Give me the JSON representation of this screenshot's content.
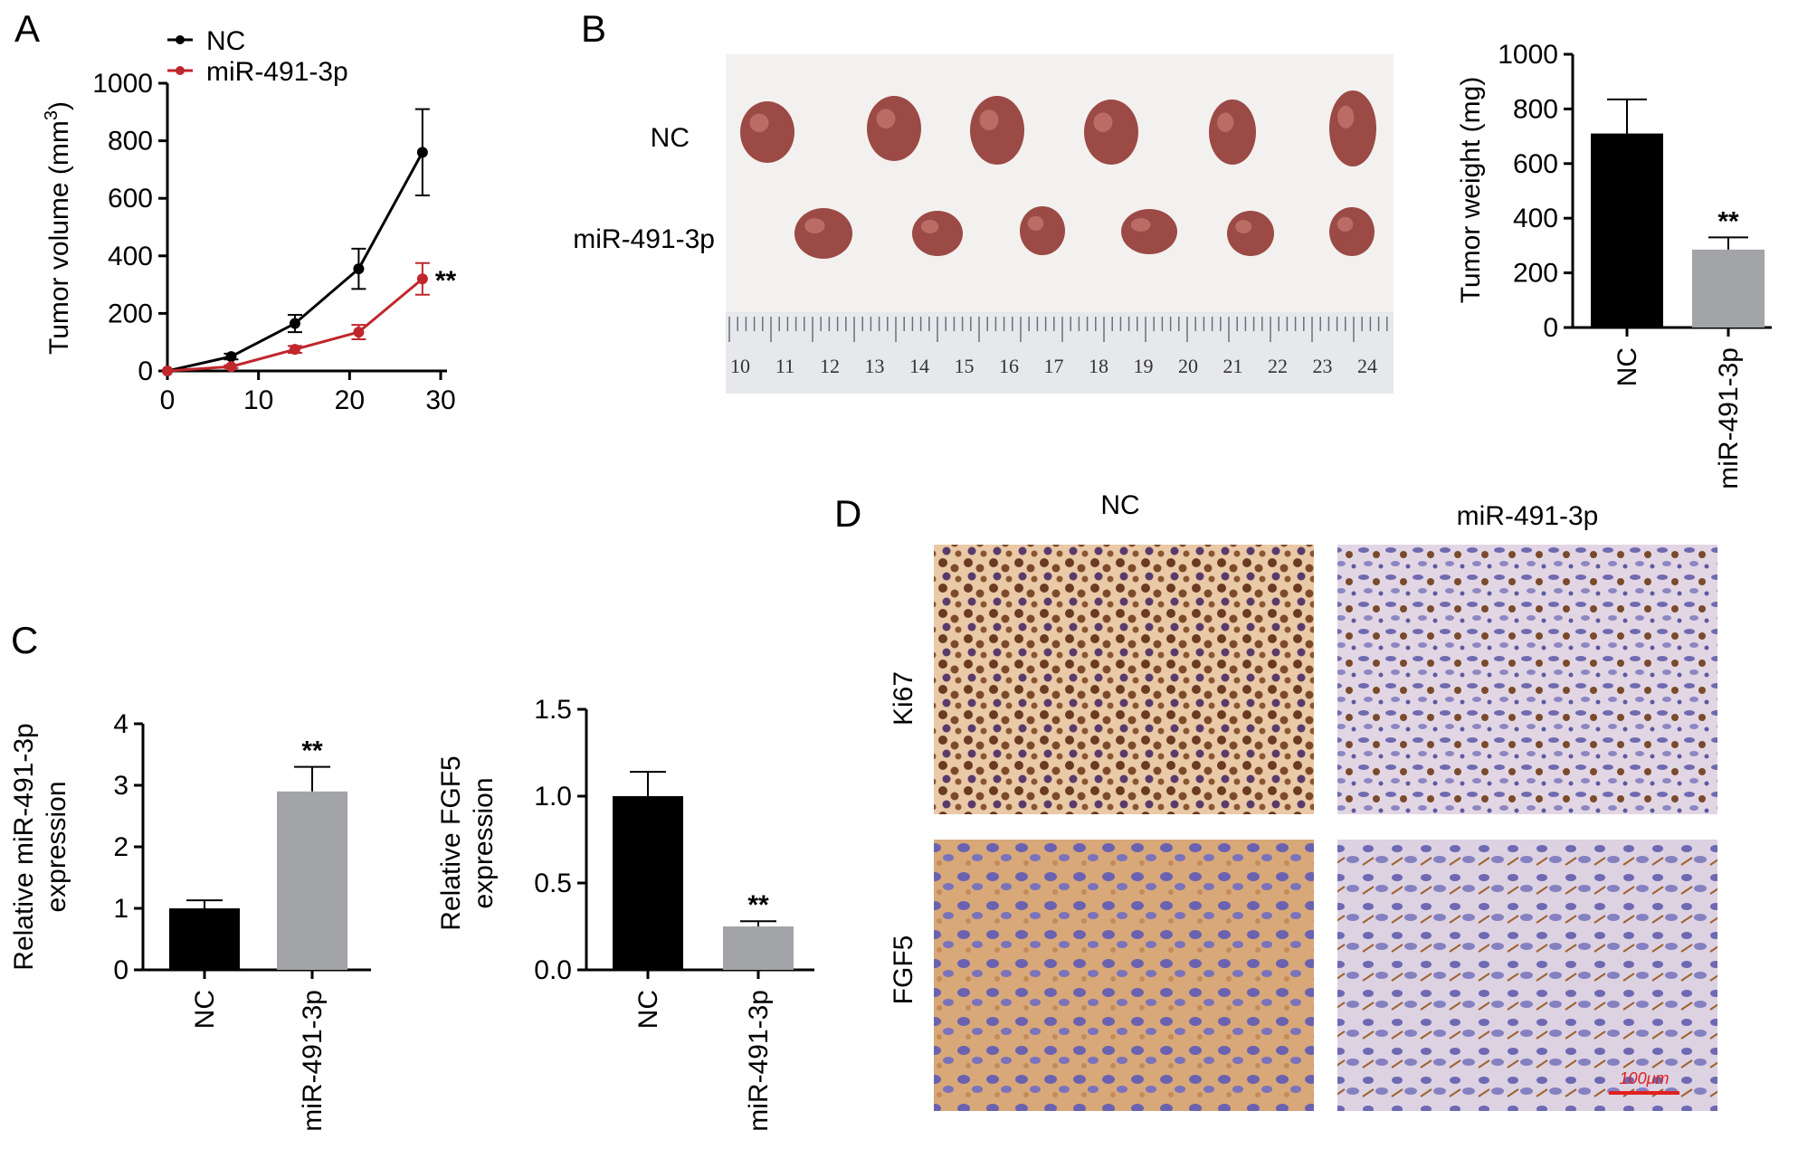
{
  "panels": {
    "a": "A",
    "b": "B",
    "c": "C",
    "d": "D"
  },
  "colors": {
    "nc": "#000000",
    "mir": "#c0272d",
    "bar_nc": "#000000",
    "bar_mir": "#a3a4a8",
    "scale_bar": "#e0201e"
  },
  "photo": {
    "row_labels": [
      "NC",
      "miR-491-3p"
    ],
    "ruler_numbers": [
      "10",
      "11",
      "12",
      "13",
      "14",
      "15",
      "16",
      "17",
      "18",
      "19",
      "20",
      "21",
      "22",
      "23",
      "24"
    ]
  },
  "ihc": {
    "col_labels": [
      "NC",
      "miR-491-3p"
    ],
    "row_labels": [
      "Ki67",
      "FGF5"
    ],
    "scale_label": "100μm"
  },
  "chart_data": [
    {
      "panel": "A",
      "type": "line",
      "ylabel_main": "Tumor volume (mm",
      "ylabel_sup": "3",
      "ylabel_close": ")",
      "xlim": [
        0,
        30
      ],
      "ylim": [
        0,
        1000
      ],
      "xticks": [
        "0",
        "10",
        "20",
        "30"
      ],
      "yticks": [
        "0",
        "200",
        "400",
        "600",
        "800",
        "1000"
      ],
      "series": [
        {
          "name": "NC",
          "color": "#000000",
          "x": [
            0,
            7,
            14,
            21,
            28
          ],
          "y": [
            0,
            50,
            165,
            355,
            760
          ],
          "err": [
            0,
            10,
            30,
            70,
            150
          ]
        },
        {
          "name": "miR-491-3p",
          "color": "#c0272d",
          "x": [
            0,
            7,
            14,
            21,
            28
          ],
          "y": [
            0,
            15,
            75,
            135,
            320
          ],
          "err": [
            0,
            5,
            12,
            25,
            55
          ]
        }
      ],
      "annotation": "**"
    },
    {
      "panel": "B",
      "type": "bar",
      "ylabel": "Tumor weight (mg)",
      "categories": [
        "NC",
        "miR-491-3p"
      ],
      "values": [
        710,
        285
      ],
      "err": [
        125,
        45
      ],
      "ylim": [
        0,
        1000
      ],
      "yticks": [
        "0",
        "200",
        "400",
        "600",
        "800",
        "1000"
      ],
      "annotation": "**"
    },
    {
      "panel": "C",
      "type": "bar",
      "ylabel": [
        "Relative miR-491-3p",
        "expression"
      ],
      "categories": [
        "NC",
        "miR-491-3p"
      ],
      "values": [
        1.0,
        2.9
      ],
      "err": [
        0.13,
        0.4
      ],
      "ylim": [
        0,
        4
      ],
      "yticks": [
        "0",
        "1",
        "2",
        "3",
        "4"
      ],
      "annotation": "**"
    },
    {
      "panel": "C",
      "type": "bar",
      "ylabel": [
        "Relative FGF5",
        "expression"
      ],
      "categories": [
        "NC",
        "miR-491-3p"
      ],
      "values": [
        1.0,
        0.25
      ],
      "err": [
        0.14,
        0.03
      ],
      "ylim": [
        0,
        1.5
      ],
      "yticks": [
        "0.0",
        "0.5",
        "1.0",
        "1.5"
      ],
      "annotation": "**"
    }
  ]
}
